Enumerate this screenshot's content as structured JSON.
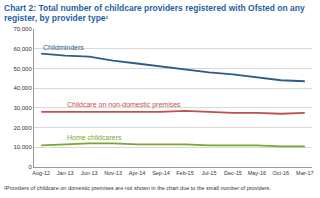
{
  "chart_data": {
    "type": "line",
    "title": "Chart 2: Total number of childcare providers registered with Ofsted on any register, by provider type¹",
    "footnote": "¹Providers of childcare on domestic premises are not shown in the chart due to the small number of providers.",
    "categories": [
      "Aug-12",
      "Jan-13",
      "Jun-13",
      "Nov-13",
      "Apr-14",
      "Sep-14",
      "Feb-15",
      "Jul-15",
      "Dec-15",
      "May-16",
      "Oct-16",
      "Mar-17"
    ],
    "series": [
      {
        "name": "Childminders",
        "color": "#2e5c8a",
        "values": [
          57500,
          56500,
          56000,
          54000,
          52500,
          51000,
          49500,
          48000,
          47000,
          45500,
          44000,
          43500
        ]
      },
      {
        "name": "Childcare on non-domestic premises",
        "color": "#c0504d",
        "values": [
          28000,
          28000,
          28000,
          28000,
          28000,
          28000,
          28500,
          28000,
          27500,
          27500,
          27000,
          27500
        ]
      },
      {
        "name": "Home childcarers",
        "color": "#7aa62d",
        "values": [
          11000,
          11500,
          12000,
          12000,
          11500,
          11500,
          11500,
          11000,
          11000,
          11000,
          10500,
          10500
        ]
      }
    ],
    "ylim": [
      0,
      70000
    ],
    "yticks": [
      0,
      {
        "value": 10000,
        "label": "10,000"
      },
      {
        "value": 20000,
        "label": "20,000"
      },
      {
        "value": 30000,
        "label": "30,000"
      },
      {
        "value": 40000,
        "label": "40,000"
      },
      {
        "value": 50000,
        "label": "50,000"
      },
      {
        "value": 60000,
        "label": "60,000"
      },
      {
        "value": 70000,
        "label": "70,000"
      }
    ],
    "grid": true
  }
}
